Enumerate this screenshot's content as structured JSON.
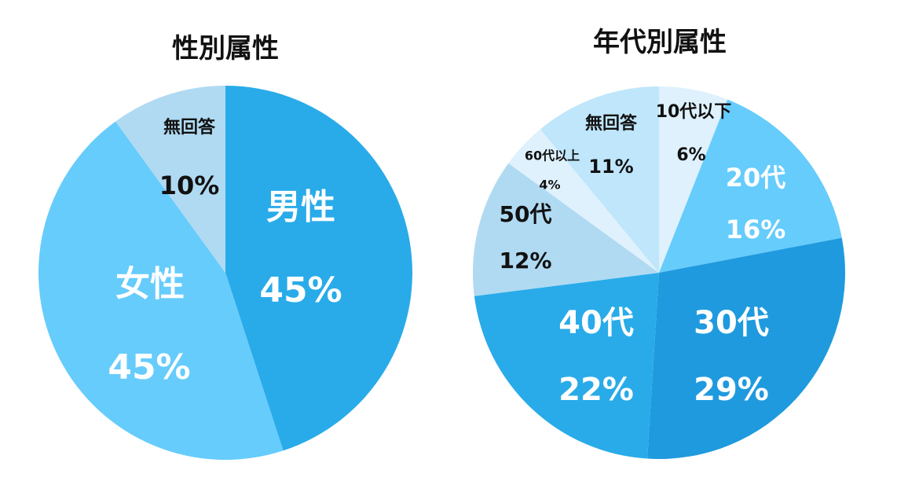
{
  "chart_data": [
    {
      "type": "pie",
      "title": "性別属性",
      "slices": [
        {
          "label": "男性",
          "value": 45,
          "display": "45%",
          "color": "#29abe9",
          "text_color": "#ffffff",
          "label_size": 44,
          "value_size": 44
        },
        {
          "label": "女性",
          "value": 45,
          "display": "45%",
          "color": "#66ccfc",
          "text_color": "#ffffff",
          "label_size": 44,
          "value_size": 44
        },
        {
          "label": "無回答",
          "value": 10,
          "display": "10%",
          "color": "#b0daf2",
          "text_color": "#111111",
          "label_size": 22,
          "value_size": 32
        }
      ]
    },
    {
      "type": "pie",
      "title": "年代別属性",
      "slices": [
        {
          "label": "10代以下",
          "value": 6,
          "display": "6%",
          "color": "#def1fd",
          "text_color": "#111111",
          "label_size": 22,
          "value_size": 22
        },
        {
          "label": "20代",
          "value": 16,
          "display": "16%",
          "color": "#66ccfc",
          "text_color": "#ffffff",
          "label_size": 32,
          "value_size": 32
        },
        {
          "label": "30代",
          "value": 29,
          "display": "29%",
          "color": "#1f9ade",
          "text_color": "#ffffff",
          "label_size": 40,
          "value_size": 40
        },
        {
          "label": "40代",
          "value": 22,
          "display": "22%",
          "color": "#29abe9",
          "text_color": "#ffffff",
          "label_size": 40,
          "value_size": 40
        },
        {
          "label": "50代",
          "value": 12,
          "display": "12%",
          "color": "#b0daf2",
          "text_color": "#111111",
          "label_size": 28,
          "value_size": 28
        },
        {
          "label": "60代以上",
          "value": 4,
          "display": "4%",
          "color": "#def1fd",
          "text_color": "#111111",
          "label_size": 16,
          "value_size": 16
        },
        {
          "label": "無回答",
          "value": 11,
          "display": "11%",
          "color": "#bfe6fb",
          "text_color": "#111111",
          "label_size": 22,
          "value_size": 24
        }
      ]
    }
  ]
}
